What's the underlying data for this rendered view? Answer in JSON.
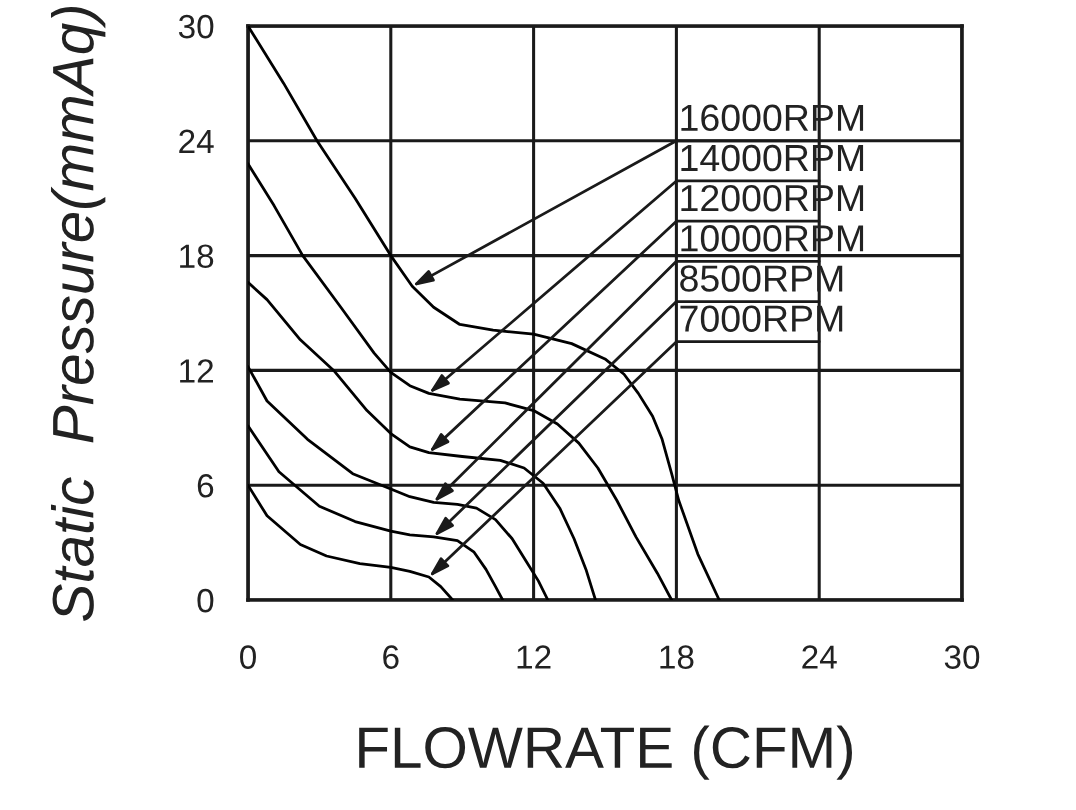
{
  "chart_data": {
    "type": "line",
    "xlabel": "FLOWRATE (CFM)",
    "ylabel": "Static  Pressure(mmAq)",
    "xlim": [
      0,
      30
    ],
    "ylim": [
      0,
      30
    ],
    "xticks": [
      0,
      6,
      12,
      18,
      24,
      30
    ],
    "yticks": [
      0,
      6,
      12,
      18,
      24,
      30
    ],
    "grid": true,
    "series": [
      {
        "color": "#000000",
        "x": [
          0,
          1.5,
          2.9,
          4.5,
          6,
          6.9,
          7.8,
          8.9,
          10.3,
          12,
          13.6,
          15,
          15.8,
          16.4,
          17,
          17.4,
          17.8,
          18.1,
          18.9,
          19.8
        ],
        "values": [
          30,
          27,
          24,
          21,
          18,
          16.4,
          15.3,
          14.4,
          14.1,
          13.9,
          13.4,
          12.6,
          11.8,
          10.8,
          9.6,
          8.4,
          6.6,
          5.2,
          2.4,
          0
        ]
      },
      {
        "color": "#000000",
        "x": [
          0,
          1.1,
          2.3,
          3.9,
          5.3,
          6,
          6.8,
          7.6,
          8.9,
          10.8,
          12,
          13,
          13.9,
          14.7,
          15.5,
          16.3,
          17.2,
          17.8
        ],
        "values": [
          22.8,
          20.6,
          18,
          15.3,
          12.9,
          11.9,
          11.2,
          10.8,
          10.5,
          10.3,
          9.9,
          9.2,
          8.2,
          6.9,
          5.2,
          3.3,
          1.4,
          0
        ]
      },
      {
        "color": "#000000",
        "x": [
          0,
          0.8,
          2.2,
          3.6,
          5,
          6,
          6.8,
          7.6,
          9,
          10.6,
          11.6,
          12.4,
          13.1,
          13.7,
          14.2,
          14.6
        ],
        "values": [
          16.6,
          15.7,
          13.6,
          12,
          9.9,
          8.7,
          8,
          7.7,
          7.5,
          7.3,
          6.9,
          6.1,
          4.8,
          3.2,
          1.6,
          0
        ]
      },
      {
        "color": "#000000",
        "x": [
          0,
          0.8,
          2.5,
          4.4,
          6,
          6.8,
          7.8,
          8.8,
          9.6,
          10.4,
          11.1,
          11.7,
          12.2,
          12.6
        ],
        "values": [
          12.2,
          10.4,
          8.4,
          6.6,
          5.8,
          5.4,
          5.1,
          5,
          4.8,
          4.2,
          3.2,
          2,
          1,
          0
        ]
      },
      {
        "color": "#000000",
        "x": [
          0,
          1.3,
          3,
          4.5,
          6,
          6.8,
          7.8,
          8.8,
          9.5,
          10,
          10.4,
          10.7
        ],
        "values": [
          9.1,
          6.7,
          4.9,
          4.1,
          3.6,
          3.4,
          3.3,
          3.1,
          2.5,
          1.6,
          0.7,
          0
        ]
      },
      {
        "color": "#000000",
        "x": [
          0,
          0.8,
          2.2,
          3.3,
          4.7,
          6,
          6.8,
          7.6,
          8.1,
          8.6
        ],
        "values": [
          6,
          4.4,
          2.9,
          2.3,
          1.9,
          1.7,
          1.5,
          1.2,
          0.7,
          0
        ]
      }
    ],
    "annotations": [
      {
        "text": "16000RPM",
        "x": 6.9,
        "y": 16.4
      },
      {
        "text": "14000RPM",
        "x": 7.6,
        "y": 10.8
      },
      {
        "text": "12000RPM",
        "x": 7.6,
        "y": 7.7
      },
      {
        "text": "10000RPM",
        "x": 7.8,
        "y": 5.1
      },
      {
        "text": "8500RPM",
        "x": 7.8,
        "y": 3.3
      },
      {
        "text": "7000RPM",
        "x": 7.6,
        "y": 1.2
      }
    ]
  }
}
